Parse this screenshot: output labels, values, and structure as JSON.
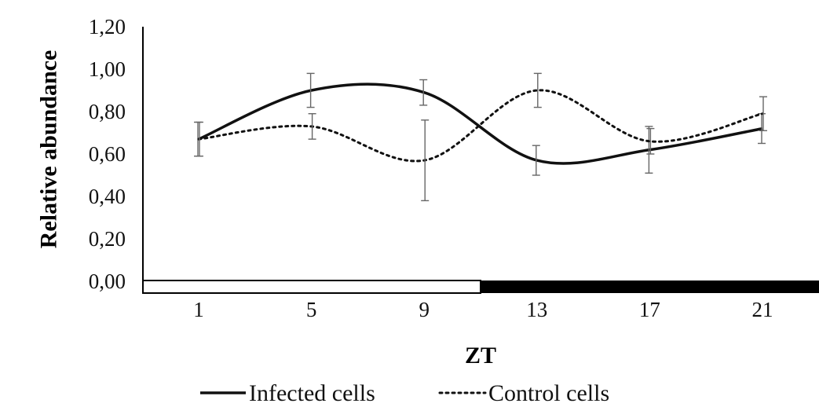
{
  "chart_data": {
    "type": "line",
    "title": "",
    "xlabel": "ZT",
    "ylabel": "Relative abundance",
    "categories": [
      "1",
      "5",
      "9",
      "13",
      "17",
      "21"
    ],
    "ylim": [
      0,
      1.2
    ],
    "yticks": [
      "0,00",
      "0,20",
      "0,40",
      "0,60",
      "0,80",
      "1,00",
      "1,20"
    ],
    "grid": false,
    "legend_position": "bottom",
    "series": [
      {
        "name": "Infected cells",
        "style": "solid",
        "color": "#111111",
        "values": [
          0.67,
          0.9,
          0.89,
          0.57,
          0.62,
          0.72
        ],
        "errors": [
          0.08,
          0.08,
          0.06,
          0.07,
          0.11,
          0.07
        ]
      },
      {
        "name": "Control cells",
        "style": "dotted",
        "color": "#111111",
        "values": [
          0.67,
          0.73,
          0.57,
          0.9,
          0.66,
          0.79
        ],
        "errors": [
          0.08,
          0.06,
          0.19,
          0.08,
          0.06,
          0.08
        ]
      }
    ],
    "light_dark_bar": {
      "light_color": "#ffffff",
      "dark_color": "#000000"
    }
  }
}
